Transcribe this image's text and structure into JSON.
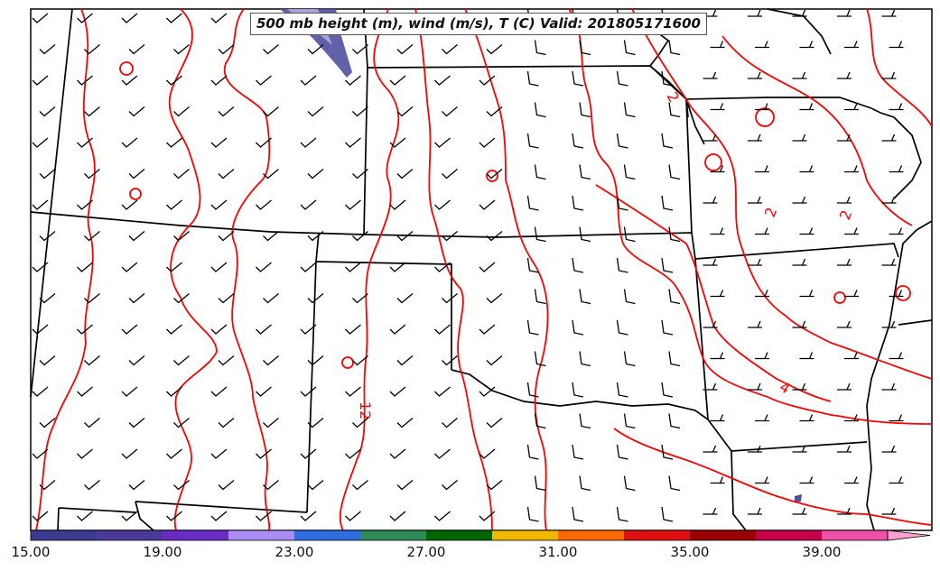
{
  "title": "500 mb height (m), wind (m/s), T (C) Valid: 201805171600",
  "contour_labels": [
    "2",
    "2",
    "2",
    "4",
    "12"
  ],
  "colorbar": {
    "tick_labels": [
      "15.00",
      "19.00",
      "23.00",
      "27.00",
      "31.00",
      "35.00",
      "39.00"
    ],
    "range": [
      15,
      43
    ],
    "colors": [
      "#3b3b8f",
      "#4b3a9a",
      "#6a2bc4",
      "#a98cf5",
      "#2f6de0",
      "#2e8b57",
      "#006400",
      "#f0b800",
      "#ff6a00",
      "#e01010",
      "#9b0000",
      "#c8004a",
      "#f050a8",
      "#ff9fd0"
    ]
  },
  "colors": {
    "temperature_contour": "#ff0000",
    "borders": "#000000",
    "wind_barbs": "#000000",
    "wind_shading": "#5050a0"
  }
}
